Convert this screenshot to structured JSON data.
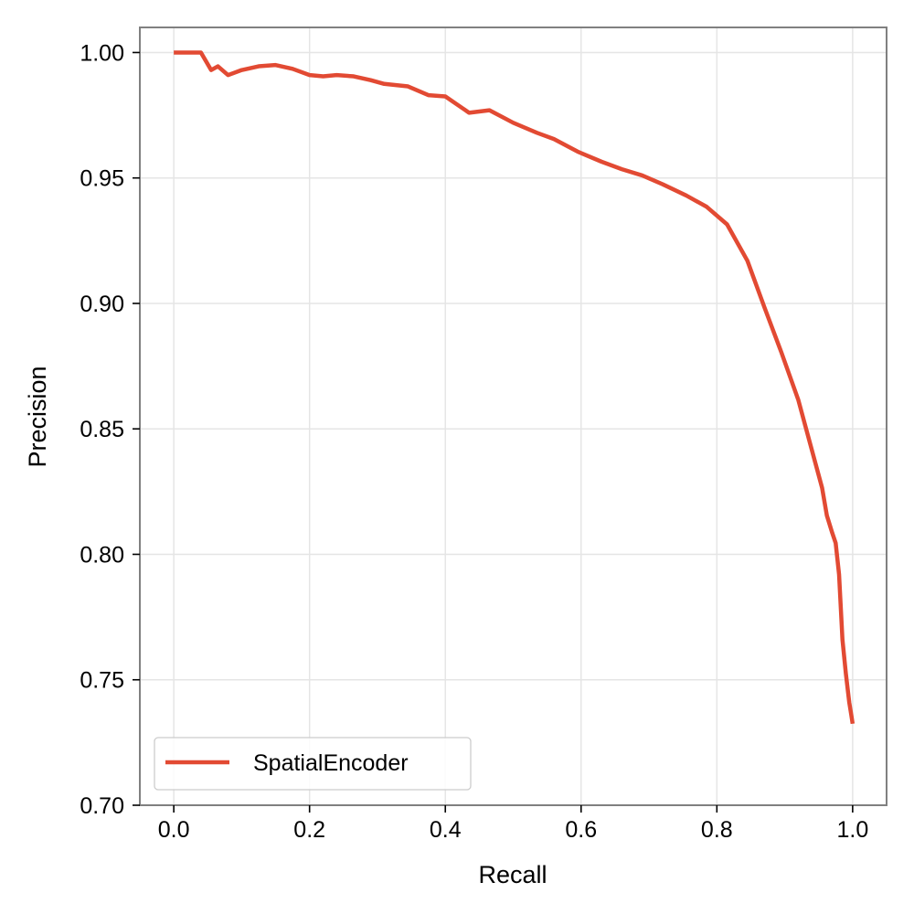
{
  "chart_data": {
    "type": "line",
    "title": "",
    "xlabel": "Recall",
    "ylabel": "Precision",
    "xlim": [
      -0.05,
      1.05
    ],
    "ylim": [
      0.7,
      1.01
    ],
    "xticks": [
      0.0,
      0.2,
      0.4,
      0.6,
      0.8,
      1.0
    ],
    "xtick_labels": [
      "0.0",
      "0.2",
      "0.4",
      "0.6",
      "0.8",
      "1.0"
    ],
    "yticks": [
      0.7,
      0.75,
      0.8,
      0.85,
      0.9,
      0.95,
      1.0
    ],
    "ytick_labels": [
      "0.70",
      "0.75",
      "0.80",
      "0.85",
      "0.90",
      "0.95",
      "1.00"
    ],
    "grid": true,
    "legend_position": "lower-left",
    "series": [
      {
        "name": "SpatialEncoder",
        "color": "#e24a33",
        "x": [
          0.0,
          0.01,
          0.02,
          0.04,
          0.055,
          0.065,
          0.08,
          0.1,
          0.125,
          0.15,
          0.175,
          0.2,
          0.22,
          0.24,
          0.265,
          0.29,
          0.31,
          0.345,
          0.375,
          0.4,
          0.435,
          0.465,
          0.5,
          0.535,
          0.56,
          0.595,
          0.63,
          0.66,
          0.69,
          0.72,
          0.755,
          0.785,
          0.815,
          0.845,
          0.87,
          0.895,
          0.92,
          0.94,
          0.955,
          0.962,
          0.97,
          0.975,
          0.98,
          0.985,
          0.99,
          0.995,
          0.998,
          1.0
        ],
        "y": [
          1.0,
          1.0,
          1.0,
          1.0,
          0.993,
          0.9945,
          0.991,
          0.993,
          0.9945,
          0.995,
          0.9935,
          0.991,
          0.9905,
          0.991,
          0.9905,
          0.989,
          0.9875,
          0.9865,
          0.983,
          0.9825,
          0.976,
          0.977,
          0.972,
          0.968,
          0.9655,
          0.9605,
          0.9565,
          0.9535,
          0.951,
          0.9475,
          0.943,
          0.9385,
          0.9315,
          0.917,
          0.8985,
          0.8805,
          0.8615,
          0.8415,
          0.8265,
          0.8155,
          0.8085,
          0.8045,
          0.792,
          0.766,
          0.7525,
          0.741,
          0.736,
          0.7325
        ]
      }
    ]
  }
}
